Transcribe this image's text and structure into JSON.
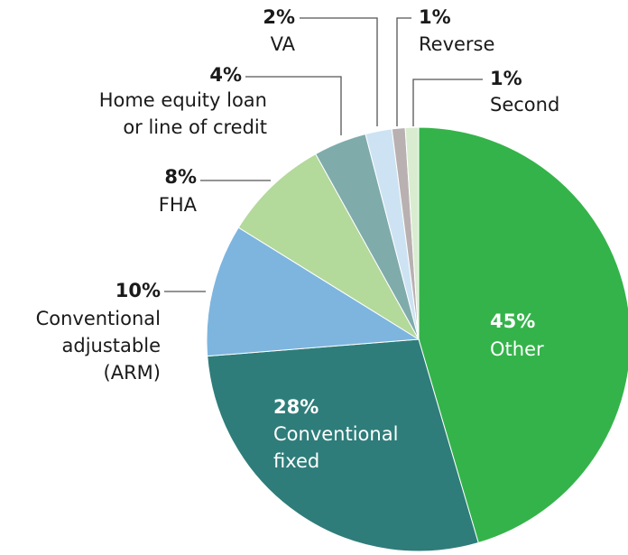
{
  "chart_data": {
    "type": "pie",
    "categories": [
      "Other",
      "Conventional fixed",
      "Conventional adjustable (ARM)",
      "FHA",
      "Home equity loan or line of credit",
      "VA",
      "Reverse",
      "Second"
    ],
    "values": [
      45,
      28,
      10,
      8,
      4,
      2,
      1,
      1
    ],
    "value_labels": [
      "45%",
      "28%",
      "10%",
      "8%",
      "4%",
      "2%",
      "1%",
      "1%"
    ],
    "colors": [
      "#34b34a",
      "#2e7d7a",
      "#7db5df",
      "#b3d99b",
      "#7fabab",
      "#cde3f3",
      "#b9b1b1",
      "#d9ecd0"
    ]
  }
}
